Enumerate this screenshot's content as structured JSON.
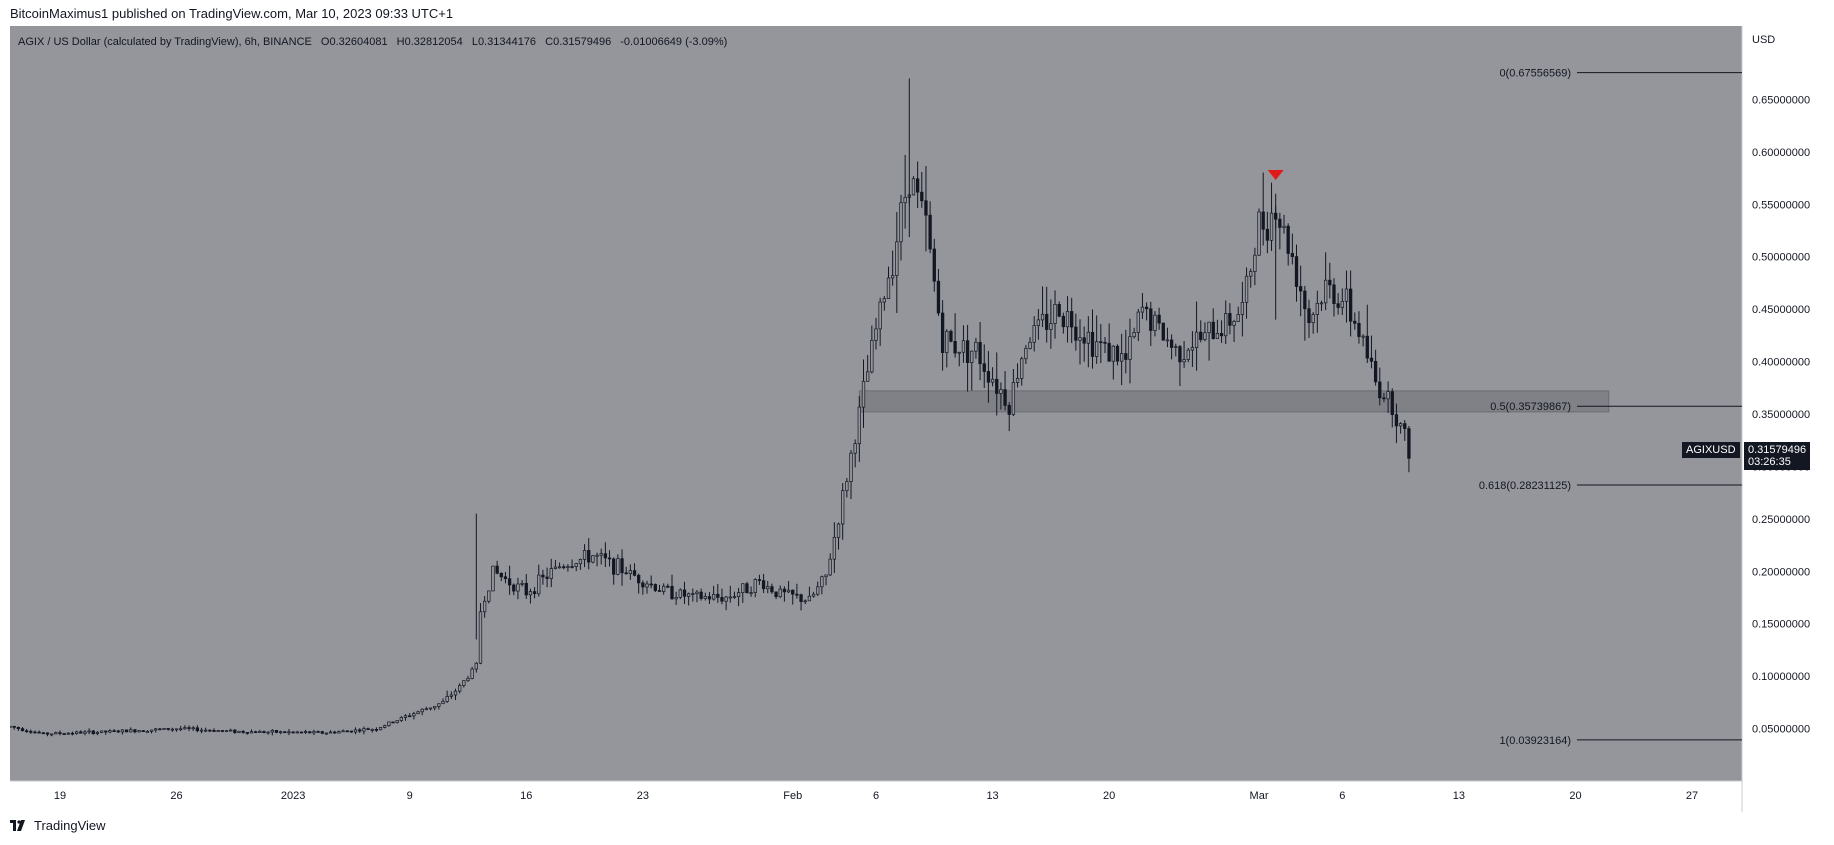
{
  "header": {
    "text": "BitcoinMaximus1 published on TradingView.com, Mar 10, 2023 09:33 UTC+1"
  },
  "footer": {
    "brand": "TradingView"
  },
  "legend": {
    "symbol": "AGIX / US Dollar (calculated by TradingView), 6h, BINANCE",
    "o_label": "O",
    "o": "0.32604081",
    "h_label": "H",
    "h": "0.32812054",
    "l_label": "L",
    "l": "0.31344176",
    "c_label": "C",
    "c": "0.31579496",
    "change": "-0.01006649 (-3.09%)"
  },
  "axis": {
    "currency": "USD"
  },
  "price_tag": {
    "symbol": "AGIXUSD",
    "price": "0.31579496",
    "countdown": "03:26:35"
  },
  "colors": {
    "pane": "#94969c",
    "candle": "#131722",
    "zone": "#7c7e84",
    "marker": "#e01a1a",
    "text": "#131722"
  },
  "chart_data": {
    "type": "candlestick",
    "ylim": [
      0.0,
      0.72
    ],
    "xlim_days": [
      "2022-12-16",
      "2023-03-30"
    ],
    "y_ticks": [
      "0.05000000",
      "0.10000000",
      "0.15000000",
      "0.20000000",
      "0.25000000",
      "0.30000000",
      "0.35000000",
      "0.40000000",
      "0.45000000",
      "0.50000000",
      "0.55000000",
      "0.60000000",
      "0.65000000"
    ],
    "x_ticks": [
      {
        "label": "19",
        "date": "2022-12-19"
      },
      {
        "label": "26",
        "date": "2022-12-26"
      },
      {
        "label": "2023",
        "date": "2023-01-02"
      },
      {
        "label": "9",
        "date": "2023-01-09"
      },
      {
        "label": "16",
        "date": "2023-01-16"
      },
      {
        "label": "23",
        "date": "2023-01-23"
      },
      {
        "label": "Feb",
        "date": "2023-02-01"
      },
      {
        "label": "6",
        "date": "2023-02-06"
      },
      {
        "label": "13",
        "date": "2023-02-13"
      },
      {
        "label": "20",
        "date": "2023-02-20"
      },
      {
        "label": "Mar",
        "date": "2023-03-01"
      },
      {
        "label": "6",
        "date": "2023-03-06"
      },
      {
        "label": "13",
        "date": "2023-03-13"
      },
      {
        "label": "20",
        "date": "2023-03-20"
      },
      {
        "label": "27",
        "date": "2023-03-27"
      }
    ],
    "price_path": [
      [
        "2022-12-16",
        0.052
      ],
      [
        "2022-12-18",
        0.045
      ],
      [
        "2022-12-22",
        0.047
      ],
      [
        "2022-12-26",
        0.05
      ],
      [
        "2022-12-30",
        0.047
      ],
      [
        "2023-01-04",
        0.046
      ],
      [
        "2023-01-07",
        0.05
      ],
      [
        "2023-01-09",
        0.063
      ],
      [
        "2023-01-11",
        0.075
      ],
      [
        "2023-01-12",
        0.09
      ],
      [
        "2023-01-13",
        0.11
      ],
      [
        "2023-01-13",
        0.15
      ],
      [
        "2023-01-14",
        0.2
      ],
      [
        "2023-01-16",
        0.18
      ],
      [
        "2023-01-18",
        0.205
      ],
      [
        "2023-01-20",
        0.215
      ],
      [
        "2023-01-22",
        0.2
      ],
      [
        "2023-01-24",
        0.183
      ],
      [
        "2023-01-26",
        0.175
      ],
      [
        "2023-01-28",
        0.175
      ],
      [
        "2023-01-30",
        0.19
      ],
      [
        "2023-01-31",
        0.18
      ],
      [
        "2023-02-02",
        0.172
      ],
      [
        "2023-02-03",
        0.195
      ],
      [
        "2023-02-04",
        0.27
      ],
      [
        "2023-02-05",
        0.35
      ],
      [
        "2023-02-06",
        0.43
      ],
      [
        "2023-02-07",
        0.5
      ],
      [
        "2023-02-08",
        0.58
      ],
      [
        "2023-02-09",
        0.53
      ],
      [
        "2023-02-10",
        0.42
      ],
      [
        "2023-02-12",
        0.41
      ],
      [
        "2023-02-14",
        0.36
      ],
      [
        "2023-02-15",
        0.42
      ],
      [
        "2023-02-17",
        0.45
      ],
      [
        "2023-02-19",
        0.42
      ],
      [
        "2023-02-21",
        0.4
      ],
      [
        "2023-02-22",
        0.45
      ],
      [
        "2023-02-24",
        0.41
      ],
      [
        "2023-02-26",
        0.425
      ],
      [
        "2023-02-28",
        0.45
      ],
      [
        "2023-03-01",
        0.53
      ],
      [
        "2023-03-02",
        0.545
      ],
      [
        "2023-03-03",
        0.5
      ],
      [
        "2023-03-04",
        0.44
      ],
      [
        "2023-03-05",
        0.47
      ],
      [
        "2023-03-06",
        0.46
      ],
      [
        "2023-03-07",
        0.43
      ],
      [
        "2023-03-08",
        0.38
      ],
      [
        "2023-03-09",
        0.36
      ],
      [
        "2023-03-10",
        0.316
      ]
    ],
    "support_zone": {
      "from": "2023-02-05",
      "to": "2023-03-22",
      "low": 0.352,
      "high": 0.372
    },
    "peak_marker": {
      "date": "2023-03-02",
      "price": 0.577
    },
    "fib_levels": [
      {
        "label": "0(0.67556569)",
        "price": 0.67556569
      },
      {
        "label": "0.5(0.35739867)",
        "price": 0.35739867
      },
      {
        "label": "0.618(0.28231125)",
        "price": 0.28231125
      },
      {
        "label": "1(0.03923164)",
        "price": 0.03923164
      }
    ]
  }
}
